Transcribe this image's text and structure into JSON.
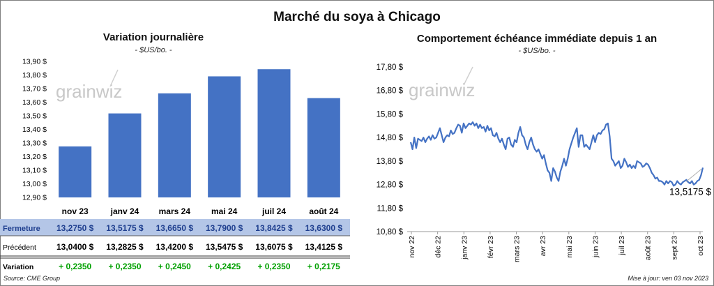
{
  "title": "Marché du soya à Chicago",
  "left": {
    "subtitle": "Variation journalière",
    "unit": "- $US/bo. -",
    "watermark": "grainwiz"
  },
  "right": {
    "subtitle": "Comportement  échéance immédiate depuis 1 an",
    "unit": "- $US/bo. -",
    "watermark": "grainwiz",
    "last_value_label": "13,5175 $"
  },
  "table": {
    "rows": [
      {
        "label": "Fermeture",
        "cells": [
          "13,2750  $",
          "13,5175  $",
          "13,6650  $",
          "13,7900  $",
          "13,8425  $",
          "13,6300  $"
        ]
      },
      {
        "label": "Précédent",
        "cells": [
          "13,0400  $",
          "13,2825  $",
          "13,4200  $",
          "13,5475  $",
          "13,6075  $",
          "13,4125  $"
        ]
      },
      {
        "label": "Variation",
        "cells": [
          "+ 0,2350",
          "+ 0,2350",
          "+ 0,2450",
          "+ 0,2425",
          "+ 0,2350",
          "+ 0,2175"
        ]
      }
    ]
  },
  "footer": {
    "source": "Source: CME Group",
    "updated": "Mise à jour: ven 03 nov 2023"
  },
  "colors": {
    "bar": "#4472c4",
    "line": "#4472c4",
    "fermeture_bg": "#b4c6e7",
    "fermeture_text": "#1f3f8f",
    "variation_text": "#00a000"
  },
  "chart_data": [
    {
      "type": "bar",
      "categories": [
        "nov 23",
        "janv 24",
        "mars 24",
        "mai 24",
        "juil 24",
        "août 24"
      ],
      "values": [
        13.275,
        13.5175,
        13.665,
        13.79,
        13.8425,
        13.63
      ],
      "ylim": [
        12.9,
        13.9
      ],
      "yticks": [
        "12,90 $",
        "13,00 $",
        "13,10 $",
        "13,20 $",
        "13,30 $",
        "13,40 $",
        "13,50 $",
        "13,60 $",
        "13,70 $",
        "13,80 $",
        "13,90 $"
      ],
      "ytick_values": [
        12.9,
        13.0,
        13.1,
        13.2,
        13.3,
        13.4,
        13.5,
        13.6,
        13.7,
        13.8,
        13.9
      ],
      "grid": false
    },
    {
      "type": "line",
      "x_labels": [
        "nov 22",
        "déc 22",
        "janv 23",
        "févr 23",
        "mars 23",
        "avr 23",
        "mai 23",
        "juin 23",
        "juil 23",
        "août 23",
        "sept 23",
        "oct 23"
      ],
      "ylim": [
        10.8,
        17.8
      ],
      "yticks": [
        "10,80 $",
        "11,80 $",
        "12,80 $",
        "13,80 $",
        "14,80 $",
        "15,80 $",
        "16,80 $",
        "17,80 $"
      ],
      "ytick_values": [
        10.8,
        11.8,
        12.8,
        13.8,
        14.8,
        15.8,
        16.8,
        17.8
      ],
      "series": [
        {
          "values": [
            14.6,
            14.3,
            14.8,
            14.35,
            14.75,
            14.7,
            14.65,
            14.8,
            14.6,
            14.75,
            14.85,
            14.7,
            14.9,
            14.75,
            14.8,
            15.0,
            15.2,
            14.9,
            14.6,
            14.8,
            14.9,
            14.85,
            15.1,
            14.95,
            15.0,
            15.2,
            15.35,
            15.3,
            15.0,
            15.4,
            15.2,
            15.3,
            15.4,
            15.35,
            15.45,
            15.3,
            15.4,
            15.2,
            15.35,
            15.2,
            15.25,
            15.05,
            15.3,
            15.1,
            15.2,
            14.9,
            14.85,
            15.0,
            14.75,
            14.6,
            14.75,
            14.5,
            14.3,
            14.75,
            14.8,
            14.5,
            14.4,
            14.7,
            14.6,
            15.0,
            15.25,
            14.9,
            14.8,
            14.5,
            14.3,
            14.6,
            14.8,
            14.5,
            14.3,
            14.2,
            14.3,
            14.1,
            13.9,
            14.05,
            13.7,
            13.4,
            13.3,
            12.95,
            13.5,
            13.35,
            13.1,
            12.95,
            13.35,
            13.6,
            13.9,
            13.6,
            13.9,
            14.3,
            14.55,
            14.8,
            15.0,
            15.2,
            14.4,
            14.9,
            14.9,
            14.4,
            14.5,
            14.4,
            14.3,
            14.6,
            14.9,
            14.6,
            14.9,
            15.0,
            14.95,
            15.1,
            15.15,
            15.35,
            15.4,
            14.85,
            13.9,
            13.8,
            13.6,
            13.7,
            13.8,
            13.5,
            13.6,
            13.9,
            13.75,
            13.55,
            13.65,
            13.5,
            13.6,
            13.5,
            13.8,
            13.75,
            13.7,
            13.55,
            13.6,
            13.7,
            13.65,
            13.5,
            13.3,
            13.2,
            13.05,
            13.1,
            12.95,
            12.95,
            12.9,
            12.8,
            12.95,
            12.85,
            12.95,
            12.9,
            12.75,
            12.8,
            12.95,
            12.85,
            12.8,
            12.9,
            12.95,
            13.0,
            12.9,
            12.85,
            12.95,
            12.8,
            12.85,
            12.95,
            13.0,
            13.2,
            13.5175
          ]
        }
      ],
      "last_value": 13.5175,
      "grid": false
    }
  ]
}
